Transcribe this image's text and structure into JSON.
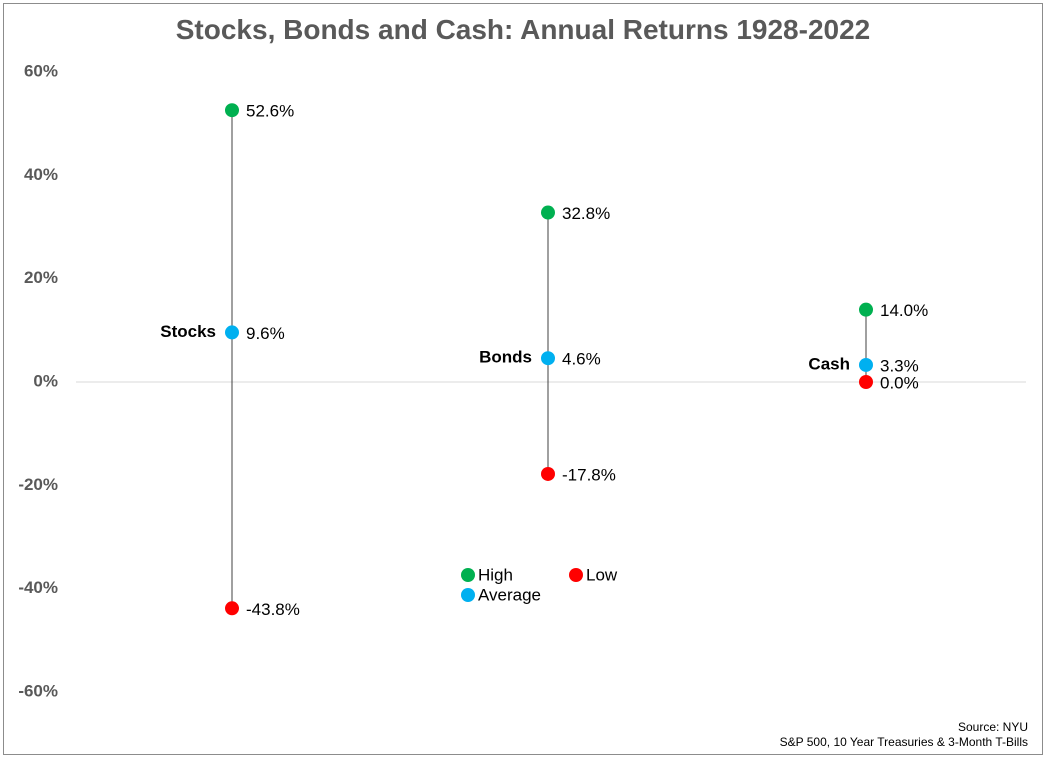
{
  "chart_data": {
    "type": "scatter",
    "title": "Stocks, Bonds and Cash: Annual Returns 1928-2022",
    "ylim": [
      -60,
      60
    ],
    "yticks": [
      "60%",
      "40%",
      "20%",
      "0%",
      "-20%",
      "-40%",
      "-60%"
    ],
    "ytick_values": [
      60,
      40,
      20,
      0,
      -20,
      -40,
      -60
    ],
    "grid": false,
    "zero_line": true,
    "categories": [
      "Stocks",
      "Bonds",
      "Cash"
    ],
    "series": [
      {
        "name": "High",
        "values": [
          52.6,
          32.8,
          14.0
        ],
        "labels": [
          "52.6%",
          "32.8%",
          "14.0%"
        ]
      },
      {
        "name": "Average",
        "values": [
          9.6,
          4.6,
          3.3
        ],
        "labels": [
          "9.6%",
          "4.6%",
          "3.3%"
        ]
      },
      {
        "name": "Low",
        "values": [
          -43.8,
          -17.8,
          0.0
        ],
        "labels": [
          "-43.8%",
          "-17.8%",
          "0.0%"
        ]
      }
    ],
    "legend": {
      "placement": "inside-bottom-center",
      "items": [
        {
          "name": "High",
          "color": "#00b050"
        },
        {
          "name": "Average",
          "color": "#00b0f0"
        },
        {
          "name": "Low",
          "color": "#ff0000"
        }
      ]
    }
  },
  "colors": {
    "high": "#00b050",
    "average": "#00b0f0",
    "low": "#ff0000"
  },
  "source": {
    "line1": "Source: NYU",
    "line2": "S&P 500, 10 Year Treasuries & 3-Month T-Bills"
  }
}
